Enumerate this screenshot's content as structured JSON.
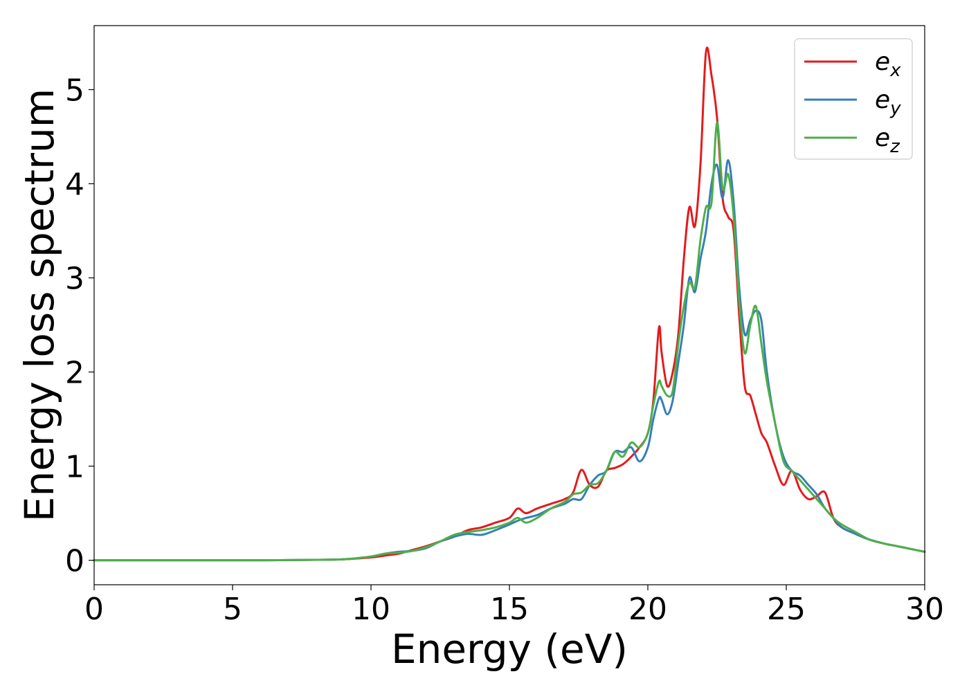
{
  "chart_data": {
    "type": "line",
    "title": "",
    "xlabel": "Energy (eV)",
    "ylabel": "Energy loss spectrum",
    "xlim": [
      0,
      30
    ],
    "ylim": [
      -0.26,
      5.68
    ],
    "xticks": [
      0,
      5,
      10,
      15,
      20,
      25,
      30
    ],
    "yticks": [
      0,
      1,
      2,
      3,
      4,
      5
    ],
    "grid": false,
    "legend_position": "top-right",
    "series": [
      {
        "name": "e",
        "subscript": "x",
        "color": "#e41a1c",
        "x": [
          0,
          2,
          4,
          6,
          8,
          9,
          10,
          10.5,
          11,
          11.5,
          12,
          12.5,
          13,
          13.5,
          14,
          14.5,
          15,
          15.3,
          15.6,
          16,
          16.5,
          17,
          17.3,
          17.6,
          17.9,
          18.2,
          18.5,
          18.8,
          19.1,
          19.4,
          19.7,
          20,
          20.2,
          20.4,
          20.5,
          20.7,
          20.9,
          21.1,
          21.3,
          21.5,
          21.7,
          21.9,
          22.1,
          22.3,
          22.5,
          22.7,
          22.9,
          23.1,
          23.3,
          23.5,
          23.7,
          23.9,
          24.1,
          24.3,
          24.6,
          24.9,
          25.2,
          25.5,
          25.8,
          26.1,
          26.4,
          26.7,
          27,
          27.5,
          28,
          28.5,
          29,
          29.5,
          30
        ],
        "y": [
          0,
          0,
          0,
          0,
          0.005,
          0.01,
          0.03,
          0.05,
          0.07,
          0.11,
          0.15,
          0.2,
          0.25,
          0.32,
          0.35,
          0.4,
          0.45,
          0.55,
          0.5,
          0.55,
          0.6,
          0.65,
          0.72,
          0.96,
          0.8,
          0.78,
          0.95,
          0.98,
          1.02,
          1.1,
          1.2,
          1.35,
          1.7,
          2.47,
          2.2,
          1.85,
          2.0,
          2.4,
          3.2,
          3.75,
          3.55,
          4.2,
          5.4,
          5.15,
          4.7,
          3.85,
          3.65,
          3.5,
          2.6,
          1.85,
          1.75,
          1.55,
          1.35,
          1.25,
          1.0,
          0.8,
          0.95,
          0.75,
          0.65,
          0.68,
          0.72,
          0.45,
          0.35,
          0.28,
          0.22,
          0.18,
          0.15,
          0.12,
          0.09
        ]
      },
      {
        "name": "e",
        "subscript": "y",
        "color": "#377eb8",
        "x": [
          0,
          2,
          4,
          6,
          8,
          9,
          10,
          10.5,
          11,
          11.5,
          12,
          12.5,
          13,
          13.5,
          14,
          14.5,
          15,
          15.3,
          15.6,
          16,
          16.5,
          17,
          17.3,
          17.6,
          17.9,
          18.2,
          18.5,
          18.8,
          19.1,
          19.4,
          19.7,
          20,
          20.2,
          20.4,
          20.5,
          20.7,
          20.9,
          21.1,
          21.3,
          21.5,
          21.7,
          21.9,
          22.1,
          22.3,
          22.5,
          22.7,
          22.9,
          23.1,
          23.3,
          23.5,
          23.7,
          23.9,
          24.1,
          24.3,
          24.6,
          24.9,
          25.2,
          25.5,
          25.8,
          26.1,
          26.4,
          26.7,
          27,
          27.5,
          28,
          28.5,
          29,
          29.5,
          30
        ],
        "y": [
          0,
          0,
          0,
          0,
          0.005,
          0.01,
          0.04,
          0.07,
          0.09,
          0.1,
          0.13,
          0.2,
          0.25,
          0.28,
          0.27,
          0.32,
          0.38,
          0.42,
          0.45,
          0.48,
          0.55,
          0.6,
          0.65,
          0.65,
          0.8,
          0.9,
          0.95,
          1.15,
          1.15,
          1.2,
          1.05,
          1.2,
          1.5,
          1.72,
          1.7,
          1.55,
          1.7,
          2.1,
          2.5,
          3.0,
          2.85,
          3.2,
          3.5,
          4.0,
          4.2,
          3.85,
          4.25,
          3.8,
          2.9,
          2.4,
          2.55,
          2.65,
          2.55,
          2.0,
          1.45,
          1.1,
          0.95,
          0.9,
          0.8,
          0.7,
          0.55,
          0.45,
          0.35,
          0.28,
          0.22,
          0.18,
          0.15,
          0.12,
          0.09
        ]
      },
      {
        "name": "e",
        "subscript": "z",
        "color": "#4daf4a",
        "x": [
          0,
          2,
          4,
          6,
          8,
          9,
          10,
          10.5,
          11,
          11.5,
          12,
          12.5,
          13,
          13.5,
          14,
          14.5,
          15,
          15.3,
          15.6,
          16,
          16.5,
          17,
          17.3,
          17.6,
          17.9,
          18.2,
          18.5,
          18.8,
          19.1,
          19.4,
          19.7,
          20,
          20.2,
          20.4,
          20.5,
          20.7,
          20.9,
          21.1,
          21.3,
          21.5,
          21.7,
          21.9,
          22.1,
          22.3,
          22.5,
          22.7,
          22.9,
          23.1,
          23.3,
          23.5,
          23.7,
          23.9,
          24.1,
          24.3,
          24.6,
          24.9,
          25.2,
          25.5,
          25.8,
          26.1,
          26.4,
          26.7,
          27,
          27.5,
          28,
          28.5,
          29,
          29.5,
          30
        ],
        "y": [
          0,
          0,
          0,
          0,
          0.005,
          0.01,
          0.04,
          0.07,
          0.08,
          0.1,
          0.14,
          0.2,
          0.27,
          0.3,
          0.32,
          0.35,
          0.4,
          0.45,
          0.4,
          0.45,
          0.55,
          0.62,
          0.7,
          0.72,
          0.8,
          0.82,
          0.95,
          1.15,
          1.1,
          1.25,
          1.2,
          1.35,
          1.65,
          1.9,
          1.85,
          1.75,
          1.8,
          2.3,
          2.7,
          2.95,
          2.9,
          3.4,
          3.75,
          3.8,
          4.65,
          3.95,
          4.1,
          3.65,
          2.75,
          2.2,
          2.5,
          2.7,
          2.3,
          1.9,
          1.45,
          1.05,
          0.95,
          0.85,
          0.75,
          0.65,
          0.55,
          0.45,
          0.38,
          0.3,
          0.22,
          0.18,
          0.15,
          0.12,
          0.09
        ]
      }
    ]
  }
}
